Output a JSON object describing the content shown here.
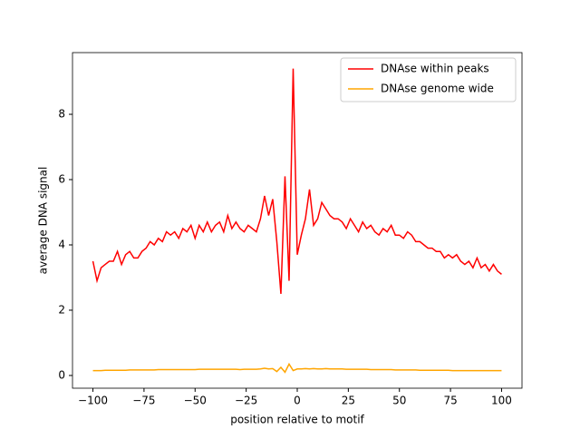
{
  "chart_data": {
    "type": "line",
    "xlabel": "position relative to motif",
    "ylabel": "average DNA signal",
    "x": [
      -100,
      -98,
      -96,
      -94,
      -92,
      -90,
      -88,
      -86,
      -84,
      -82,
      -80,
      -78,
      -76,
      -74,
      -72,
      -70,
      -68,
      -66,
      -64,
      -62,
      -60,
      -58,
      -56,
      -54,
      -52,
      -50,
      -48,
      -46,
      -44,
      -42,
      -40,
      -38,
      -36,
      -34,
      -32,
      -30,
      -28,
      -26,
      -24,
      -22,
      -20,
      -18,
      -16,
      -14,
      -12,
      -10,
      -8,
      -6,
      -4,
      -2,
      0,
      2,
      4,
      6,
      8,
      10,
      12,
      14,
      16,
      18,
      20,
      22,
      24,
      26,
      28,
      30,
      32,
      34,
      36,
      38,
      40,
      42,
      44,
      46,
      48,
      50,
      52,
      54,
      56,
      58,
      60,
      62,
      64,
      66,
      68,
      70,
      72,
      74,
      76,
      78,
      80,
      82,
      84,
      86,
      88,
      90,
      92,
      94,
      96,
      98,
      100
    ],
    "series": [
      {
        "name": "DNAse within peaks",
        "color": "#ff0000",
        "values": [
          3.5,
          2.9,
          3.3,
          3.4,
          3.5,
          3.5,
          3.8,
          3.4,
          3.7,
          3.8,
          3.6,
          3.6,
          3.8,
          3.9,
          4.1,
          4.0,
          4.2,
          4.1,
          4.4,
          4.3,
          4.4,
          4.2,
          4.5,
          4.4,
          4.6,
          4.2,
          4.6,
          4.4,
          4.7,
          4.4,
          4.6,
          4.7,
          4.4,
          4.9,
          4.5,
          4.7,
          4.5,
          4.4,
          4.6,
          4.5,
          4.4,
          4.8,
          5.5,
          4.9,
          5.4,
          4.1,
          2.5,
          6.1,
          2.9,
          9.4,
          3.7,
          4.3,
          4.8,
          5.7,
          4.6,
          4.8,
          5.3,
          5.1,
          4.9,
          4.8,
          4.8,
          4.7,
          4.5,
          4.8,
          4.6,
          4.4,
          4.7,
          4.5,
          4.6,
          4.4,
          4.3,
          4.5,
          4.4,
          4.6,
          4.3,
          4.3,
          4.2,
          4.4,
          4.3,
          4.1,
          4.1,
          4.0,
          3.9,
          3.9,
          3.8,
          3.8,
          3.6,
          3.7,
          3.6,
          3.7,
          3.5,
          3.4,
          3.5,
          3.3,
          3.6,
          3.3,
          3.4,
          3.2,
          3.4,
          3.2,
          3.1
        ]
      },
      {
        "name": "DNAse genome wide",
        "color": "#ffa500",
        "values": [
          0.15,
          0.15,
          0.15,
          0.16,
          0.16,
          0.16,
          0.16,
          0.16,
          0.16,
          0.17,
          0.17,
          0.17,
          0.17,
          0.17,
          0.17,
          0.17,
          0.18,
          0.18,
          0.18,
          0.18,
          0.18,
          0.18,
          0.18,
          0.18,
          0.18,
          0.18,
          0.19,
          0.19,
          0.19,
          0.19,
          0.19,
          0.19,
          0.19,
          0.19,
          0.19,
          0.19,
          0.18,
          0.19,
          0.19,
          0.19,
          0.19,
          0.2,
          0.22,
          0.2,
          0.21,
          0.12,
          0.25,
          0.1,
          0.35,
          0.15,
          0.2,
          0.2,
          0.21,
          0.2,
          0.21,
          0.2,
          0.2,
          0.21,
          0.2,
          0.2,
          0.2,
          0.2,
          0.19,
          0.19,
          0.19,
          0.19,
          0.19,
          0.19,
          0.18,
          0.18,
          0.18,
          0.18,
          0.18,
          0.18,
          0.17,
          0.17,
          0.17,
          0.17,
          0.17,
          0.17,
          0.16,
          0.16,
          0.16,
          0.16,
          0.16,
          0.16,
          0.16,
          0.16,
          0.15,
          0.15,
          0.15,
          0.15,
          0.15,
          0.15,
          0.15,
          0.15,
          0.15,
          0.15,
          0.15,
          0.15,
          0.15
        ]
      }
    ],
    "xlim": [
      -110,
      110
    ],
    "ylim": [
      -0.39,
      9.89
    ],
    "xticks": [
      {
        "value": -100,
        "label": "−100"
      },
      {
        "value": -75,
        "label": "−75"
      },
      {
        "value": -50,
        "label": "−50"
      },
      {
        "value": -25,
        "label": "−25"
      },
      0,
      25,
      50,
      75,
      100
    ],
    "yticks": [
      0,
      2,
      4,
      6,
      8
    ],
    "legend": "upper right",
    "grid": false
  }
}
